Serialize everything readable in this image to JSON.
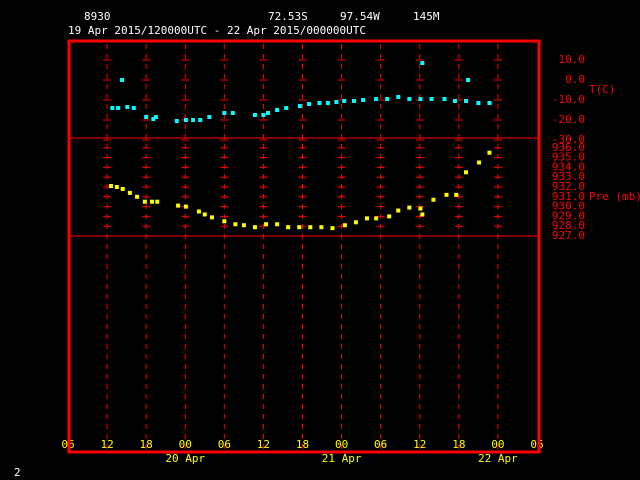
{
  "header": {
    "station": "8930",
    "lat": "72.53S",
    "lon": "97.54W",
    "elev": "145M",
    "period": "19 Apr 2015/120000UTC - 22 Apr 2015/000000UTC"
  },
  "footer": "2",
  "chart_data": [
    {
      "type": "scatter",
      "color": "#00ffff",
      "ylabel": "T(C)",
      "xlim": [
        6,
        78
      ],
      "ylim": [
        -29,
        19.5
      ],
      "yticks": [
        {
          "value": 10,
          "label": "10.0"
        },
        {
          "value": 0,
          "label": "0.0"
        },
        {
          "value": -10,
          "label": "-10.0"
        },
        {
          "value": -20,
          "label": "-20.0"
        },
        {
          "value": -30,
          "label": "-30.0"
        }
      ],
      "x": [
        12.8,
        13.7,
        14.3,
        15.1,
        16.1,
        18.0,
        19.1,
        19.5,
        22.7,
        24.1,
        25.2,
        26.3,
        27.7,
        30.0,
        31.3,
        34.7,
        36.0,
        36.7,
        38.1,
        39.5,
        41.6,
        43.0,
        44.6,
        45.9,
        47.2,
        48.4,
        49.9,
        51.3,
        53.3,
        55.0,
        56.7,
        58.4,
        60.1,
        60.4,
        61.8,
        63.8,
        65.4,
        67.1,
        67.4,
        69.0,
        70.7
      ],
      "values": [
        -14,
        -14,
        0,
        -13.5,
        -14,
        -18.5,
        -19.5,
        -18.5,
        -20.5,
        -20,
        -20,
        -20,
        -18.5,
        -16.5,
        -16.5,
        -17.5,
        -17.5,
        -16.5,
        -15,
        -14,
        -13,
        -12,
        -11.5,
        -11.5,
        -11,
        -10.5,
        -10.5,
        -10,
        -9.5,
        -9.5,
        -8.5,
        -9.5,
        -9.5,
        8.5,
        -9.5,
        -9.5,
        -10.5,
        -10.5,
        0,
        -11.5,
        -11.5
      ]
    },
    {
      "type": "scatter",
      "color": "#ffff00",
      "ylabel": "Pre (mb)",
      "xlim": [
        6,
        78
      ],
      "ylim": [
        927,
        937
      ],
      "yticks": [
        {
          "value": 936,
          "label": "936.0"
        },
        {
          "value": 935,
          "label": "935.0"
        },
        {
          "value": 934,
          "label": "934.0"
        },
        {
          "value": 933,
          "label": "933.0"
        },
        {
          "value": 932,
          "label": "932.0"
        },
        {
          "value": 931,
          "label": "931.0"
        },
        {
          "value": 930,
          "label": "930.0"
        },
        {
          "value": 929,
          "label": "929.0"
        },
        {
          "value": 928,
          "label": "928.0"
        },
        {
          "value": 927,
          "label": "927.0"
        }
      ],
      "xticks": [
        {
          "value": 6,
          "label": "06"
        },
        {
          "value": 12,
          "label": "12"
        },
        {
          "value": 18,
          "label": "18"
        },
        {
          "value": 24,
          "label": "00"
        },
        {
          "value": 30,
          "label": "06"
        },
        {
          "value": 36,
          "label": "12"
        },
        {
          "value": 42,
          "label": "18"
        },
        {
          "value": 48,
          "label": "00"
        },
        {
          "value": 54,
          "label": "06"
        },
        {
          "value": 60,
          "label": "12"
        },
        {
          "value": 66,
          "label": "18"
        },
        {
          "value": 72,
          "label": "00"
        },
        {
          "value": 78,
          "label": "06"
        }
      ],
      "date_labels": [
        {
          "value": 24,
          "label": "20 Apr"
        },
        {
          "value": 48,
          "label": "21 Apr"
        },
        {
          "value": 72,
          "label": "22 Apr"
        }
      ],
      "x": [
        12.6,
        13.5,
        14.4,
        15.5,
        16.6,
        17.8,
        18.9,
        19.7,
        22.9,
        24.1,
        26.1,
        27.0,
        28.1,
        30.0,
        31.7,
        33.0,
        34.7,
        36.4,
        38.1,
        39.8,
        41.5,
        43.2,
        44.9,
        46.6,
        48.5,
        50.2,
        51.9,
        53.3,
        55.3,
        56.7,
        58.4,
        60.1,
        60.4,
        62.1,
        64.1,
        65.6,
        67.1,
        69.1,
        70.7
      ],
      "values": [
        932.1,
        932.0,
        931.8,
        931.4,
        931.0,
        930.5,
        930.5,
        930.5,
        930.1,
        930.0,
        929.5,
        929.2,
        928.9,
        928.5,
        928.2,
        928.1,
        927.9,
        928.2,
        928.2,
        927.9,
        927.9,
        927.9,
        927.9,
        927.8,
        928.1,
        928.4,
        928.8,
        928.8,
        929.0,
        929.6,
        929.9,
        929.8,
        929.2,
        930.7,
        931.2,
        931.2,
        933.5,
        934.5,
        935.5
      ]
    }
  ]
}
